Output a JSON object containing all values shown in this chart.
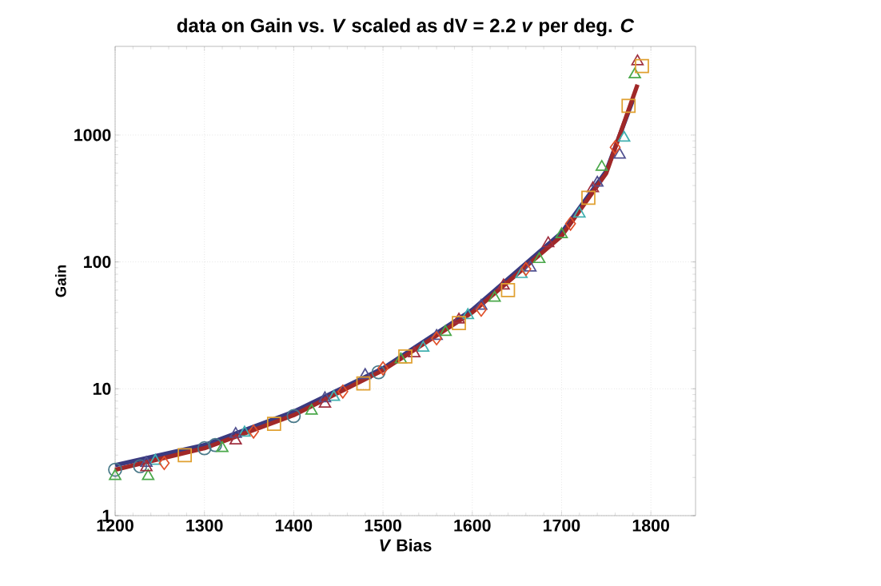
{
  "chart_data": {
    "type": "scatter",
    "title": "data on Gain vs. *V* scaled as dV = 2.2 *v* per deg. *C*",
    "xlabel": "*V* Bias",
    "ylabel": "Gain",
    "log": "y",
    "grid": true,
    "xlim": [
      1200,
      1850
    ],
    "ylim": [
      1,
      5000
    ],
    "xticks": [
      1200,
      1300,
      1400,
      1500,
      1600,
      1700,
      1800
    ],
    "yticks": [
      1,
      10,
      100,
      1000
    ],
    "series": [
      {
        "type": "line",
        "marker": "none",
        "color": "#3a3a80",
        "x": [
          1200,
          1300,
          1400,
          1500,
          1600,
          1700,
          1750,
          1780
        ],
        "values": [
          2.5,
          3.6,
          6.6,
          14.5,
          42,
          170,
          520,
          1900
        ]
      },
      {
        "type": "line",
        "marker": "none",
        "color": "#a02828",
        "x": [
          1200,
          1300,
          1400,
          1500,
          1600,
          1700,
          1750,
          1785
        ],
        "values": [
          2.3,
          3.4,
          6.2,
          14,
          40,
          160,
          500,
          2500
        ]
      },
      {
        "marker": "circle",
        "color": "#4a7a8a",
        "x": [
          1200,
          1228,
          1300,
          1312,
          1400,
          1495
        ],
        "values": [
          2.3,
          2.45,
          3.4,
          3.6,
          6.1,
          13.5
        ]
      },
      {
        "marker": "triangle",
        "color": "#4aa84a",
        "x": [
          1200,
          1237,
          1320,
          1420,
          1520,
          1570,
          1625,
          1675,
          1700,
          1745,
          1782
        ],
        "values": [
          2.05,
          2.05,
          3.4,
          6.7,
          17,
          28,
          52,
          105,
          165,
          560,
          3000
        ]
      },
      {
        "marker": "triangle",
        "color": "#40b0b0",
        "x": [
          1245,
          1345,
          1445,
          1545,
          1595,
          1655,
          1720,
          1770
        ],
        "values": [
          2.7,
          4.5,
          8.6,
          21,
          38,
          80,
          240,
          950
        ]
      },
      {
        "marker": "triangle",
        "color": "#505090",
        "x": [
          1235,
          1335,
          1435,
          1480,
          1560,
          1610,
          1665,
          1740,
          1765
        ],
        "values": [
          2.6,
          4.4,
          8.4,
          12.8,
          26,
          45,
          90,
          420,
          700
        ]
      },
      {
        "marker": "triangle",
        "color": "#a03040",
        "x": [
          1235,
          1335,
          1435,
          1535,
          1585,
          1635,
          1685,
          1735,
          1785
        ],
        "values": [
          2.4,
          3.9,
          7.6,
          19,
          35,
          65,
          140,
          380,
          3800
        ]
      },
      {
        "marker": "diamond",
        "color": "#e0502a",
        "x": [
          1255,
          1355,
          1455,
          1500,
          1560,
          1610,
          1660,
          1710,
          1760
        ],
        "values": [
          2.6,
          4.6,
          9.5,
          14.5,
          25,
          42,
          88,
          200,
          800
        ]
      },
      {
        "marker": "square",
        "color": "#e0a030",
        "x": [
          1278,
          1378,
          1478,
          1525,
          1585,
          1640,
          1730,
          1775,
          1790
        ],
        "values": [
          3.0,
          5.3,
          11,
          18,
          33,
          60,
          320,
          1700,
          3500
        ]
      }
    ]
  }
}
